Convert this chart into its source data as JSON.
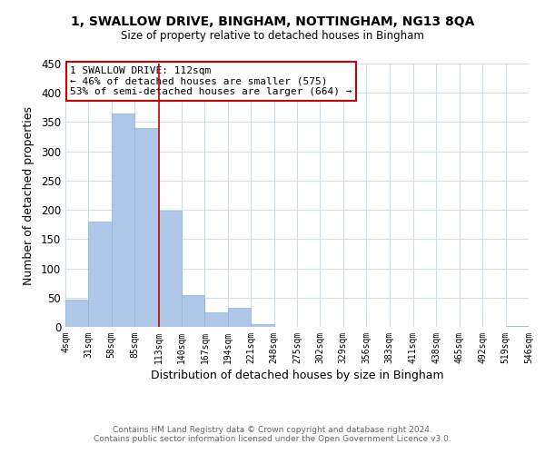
{
  "title1": "1, SWALLOW DRIVE, BINGHAM, NOTTINGHAM, NG13 8QA",
  "title2": "Size of property relative to detached houses in Bingham",
  "xlabel": "Distribution of detached houses by size in Bingham",
  "ylabel": "Number of detached properties",
  "footer1": "Contains HM Land Registry data © Crown copyright and database right 2024.",
  "footer2": "Contains public sector information licensed under the Open Government Licence v3.0.",
  "annotation_line1": "1 SWALLOW DRIVE: 112sqm",
  "annotation_line2": "← 46% of detached houses are smaller (575)",
  "annotation_line3": "53% of semi-detached houses are larger (664) →",
  "bar_edges": [
    4,
    31,
    58,
    85,
    113,
    140,
    167,
    194,
    221,
    248,
    275,
    302,
    329,
    356,
    383,
    411,
    438,
    465,
    492,
    519,
    546
  ],
  "bar_heights": [
    47,
    180,
    365,
    340,
    198,
    55,
    25,
    33,
    5,
    0,
    0,
    0,
    0,
    0,
    0,
    0,
    0,
    0,
    0,
    1
  ],
  "property_line_x": 113,
  "bar_color": "#aec6e8",
  "bar_edgecolor": "#aec6e8",
  "line_color": "#cc0000",
  "annotation_box_edgecolor": "#cc0000",
  "annotation_box_facecolor": "#ffffff",
  "background_color": "#ffffff",
  "grid_color": "#ccddee",
  "ylim": [
    0,
    450
  ],
  "xlim": [
    4,
    546
  ],
  "yticks": [
    0,
    50,
    100,
    150,
    200,
    250,
    300,
    350,
    400,
    450
  ]
}
